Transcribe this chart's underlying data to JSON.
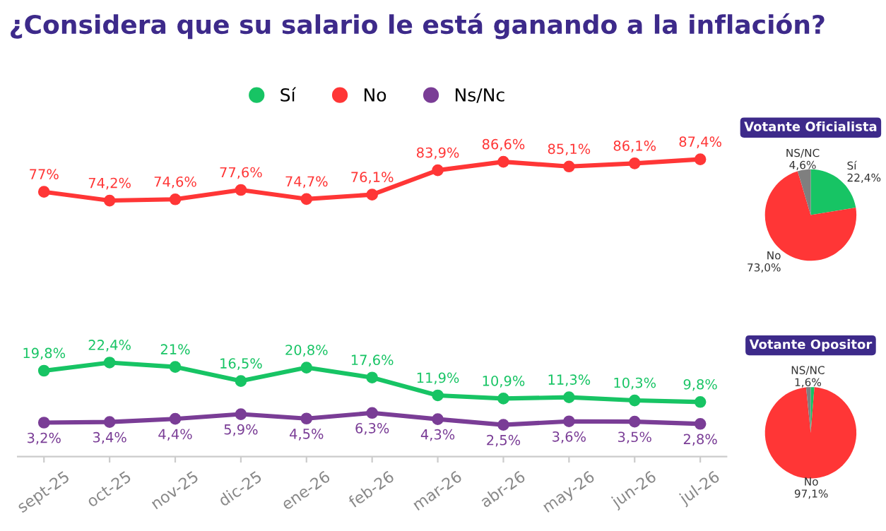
{
  "chart_data": [
    {
      "type": "line",
      "title": "¿Considera que su salario le está ganando a la inflación?",
      "categories": [
        "sept-25",
        "oct-25",
        "nov-25",
        "dic-25",
        "ene-26",
        "feb-26",
        "mar-26",
        "abr-26",
        "may-26",
        "jun-26",
        "jul-26"
      ],
      "legend": "top",
      "marker": "circle",
      "line_style": "solid",
      "grid": false,
      "series": [
        {
          "name": "Sí",
          "color": "#17c464",
          "values": [
            19.8,
            22.4,
            21,
            16.5,
            20.8,
            17.6,
            11.9,
            10.9,
            11.3,
            10.3,
            9.8
          ],
          "value_labels": [
            "19,8%",
            "22,4%",
            "21%",
            "16,5%",
            "20,8%",
            "17,6%",
            "11,9%",
            "10,9%",
            "11,3%",
            "10,3%",
            "9,8%"
          ]
        },
        {
          "name": "No",
          "color": "#ff3636",
          "values": [
            77,
            74.2,
            74.6,
            77.6,
            74.7,
            76.1,
            83.9,
            86.6,
            85.1,
            86.1,
            87.4
          ],
          "value_labels": [
            "77%",
            "74,2%",
            "74,6%",
            "77,6%",
            "74,7%",
            "76,1%",
            "83,9%",
            "86,6%",
            "85,1%",
            "86,1%",
            "87,4%"
          ]
        },
        {
          "name": "Ns/Nc",
          "color": "#7a3d96",
          "values": [
            3.2,
            3.4,
            4.4,
            5.9,
            4.5,
            6.3,
            4.3,
            2.5,
            3.6,
            3.5,
            2.8
          ],
          "value_labels": [
            "3,2%",
            "3,4%",
            "4,4%",
            "5,9%",
            "4,5%",
            "6,3%",
            "4,3%",
            "2,5%",
            "3,6%",
            "3,5%",
            "2,8%"
          ]
        }
      ]
    },
    {
      "type": "pie",
      "title": "Votante Oficialista",
      "categories": [
        "Sí",
        "No",
        "NS/NC"
      ],
      "values": [
        22.4,
        73.0,
        4.6
      ],
      "value_labels": [
        "22,4%",
        "73,0%",
        "4,6%"
      ],
      "colors": [
        "#17c464",
        "#ff3636",
        "#7f7f7f"
      ]
    },
    {
      "type": "pie",
      "title": "Votante Opositor",
      "categories": [
        null,
        "No",
        "NS/NC"
      ],
      "values": [
        1.3,
        97.1,
        1.6
      ],
      "value_labels": [
        null,
        "97,1%",
        "1,6%"
      ],
      "colors": [
        "#17c464",
        "#ff3636",
        "#7f7f7f"
      ]
    }
  ]
}
